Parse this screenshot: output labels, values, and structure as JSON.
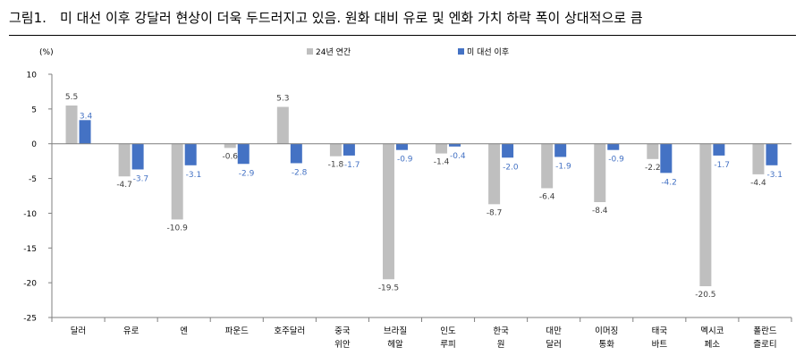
{
  "header": {
    "figure_label": "그림1.",
    "title": "미 대선 이후 강달러 현상이 더욱 두드러지고 있음. 원화 대비 유로 및 엔화 가치 하락 폭이 상대적으로 큼"
  },
  "colors": {
    "series_a": "#bfbfbf",
    "series_b": "#4472c4",
    "value_b": "#4472c4",
    "axis": "#7f7f7f"
  },
  "chart_data": {
    "type": "bar",
    "unit_label": "(%)",
    "ylim": [
      -25,
      10
    ],
    "yticks": [
      10,
      5,
      0,
      -5,
      -10,
      -15,
      -20,
      -25
    ],
    "grid": false,
    "legend_position": "top-center",
    "categories": [
      [
        "달러"
      ],
      [
        "유로"
      ],
      [
        "엔"
      ],
      [
        "파운드"
      ],
      [
        "호주달러"
      ],
      [
        "중국",
        "위안"
      ],
      [
        "브라질",
        "헤알"
      ],
      [
        "인도",
        "루피"
      ],
      [
        "한국",
        "원"
      ],
      [
        "대만",
        "달러"
      ],
      [
        "이머징",
        "통화"
      ],
      [
        "태국",
        "바트"
      ],
      [
        "멕시코",
        "페소"
      ],
      [
        "폴란드",
        "즐로티"
      ]
    ],
    "series": [
      {
        "name": "24년 연간",
        "values": [
          5.5,
          -4.7,
          -10.9,
          -0.6,
          5.3,
          -1.8,
          -19.5,
          -1.4,
          -8.7,
          -6.4,
          -8.4,
          -2.2,
          -20.5,
          -4.4
        ]
      },
      {
        "name": "미 대선 이후",
        "values": [
          3.4,
          -3.7,
          -3.1,
          -2.9,
          -2.8,
          -1.7,
          -0.9,
          -0.4,
          -2.0,
          -1.9,
          -0.9,
          -4.2,
          -1.7,
          -3.1
        ]
      }
    ]
  }
}
